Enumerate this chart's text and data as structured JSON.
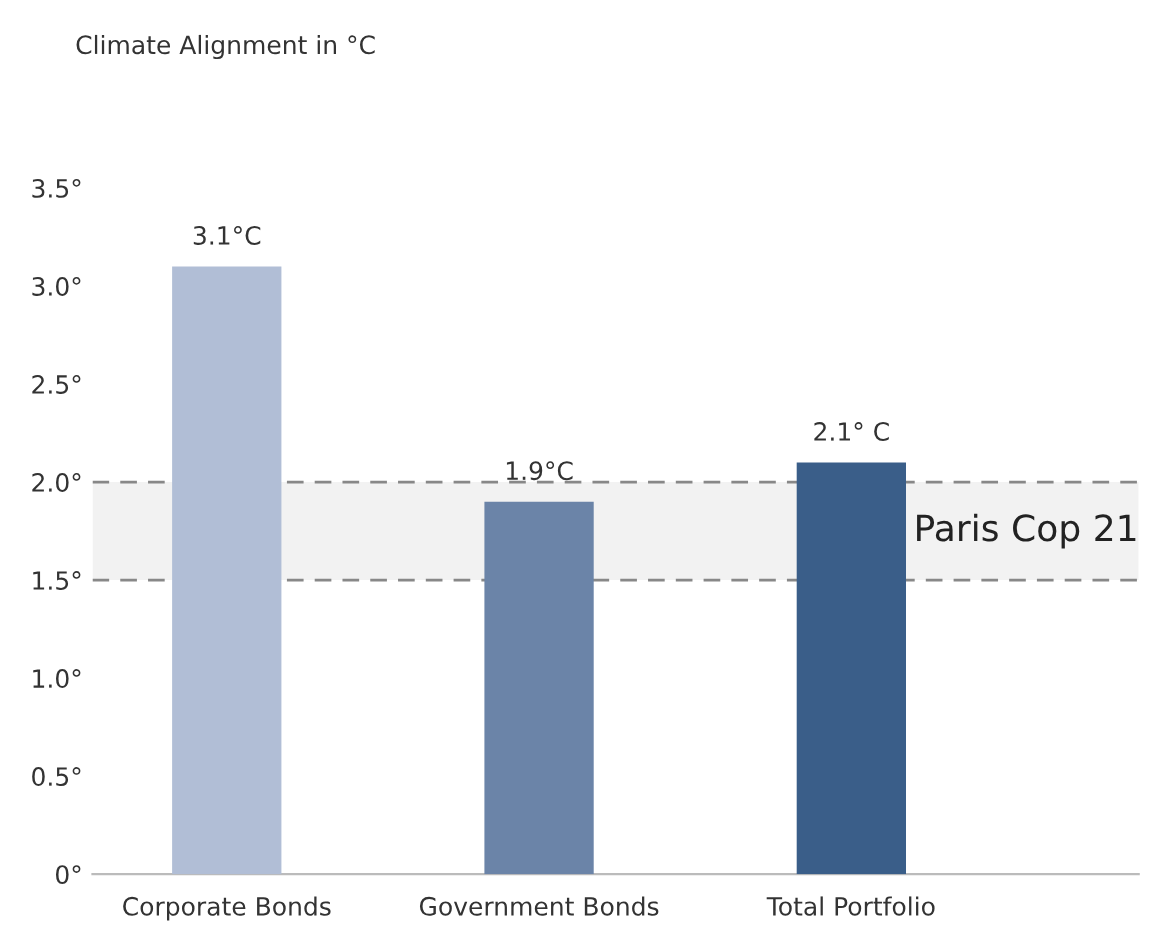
{
  "chart_data": {
    "type": "bar",
    "ylabel": "Climate Alignment in °C",
    "categories": [
      "Corporate Bonds",
      "Government Bonds",
      "Total Portfolio"
    ],
    "values": [
      3.1,
      1.9,
      2.1
    ],
    "colors": [
      "#b1bed6",
      "#6b84a8",
      "#3a5e89"
    ],
    "value_labels": [
      "3.1°C",
      "1.9°C",
      "2.1° C"
    ],
    "ylim": [
      0,
      3.5
    ],
    "yticks": [
      {
        "value": 0,
        "label": "0°"
      },
      {
        "value": 0.5,
        "label": "0.5°"
      },
      {
        "value": 1.0,
        "label": "1.0°"
      },
      {
        "value": 1.5,
        "label": "1.5°"
      },
      {
        "value": 2.0,
        "label": "2.0°"
      },
      {
        "value": 2.5,
        "label": "2.5°"
      },
      {
        "value": 3.0,
        "label": "3.0°"
      },
      {
        "value": 3.5,
        "label": "3.5°"
      }
    ],
    "bands": [
      {
        "axis": "y",
        "from": 1.5,
        "to": 2.0,
        "label": "Paris Cop 21",
        "color": "#f2f2f2"
      }
    ],
    "ref_lines": [
      {
        "axis": "y",
        "value": 1.5,
        "color": "#888888",
        "line_style": "dashed"
      },
      {
        "axis": "y",
        "value": 2.0,
        "color": "#888888",
        "line_style": "dashed"
      }
    ]
  }
}
